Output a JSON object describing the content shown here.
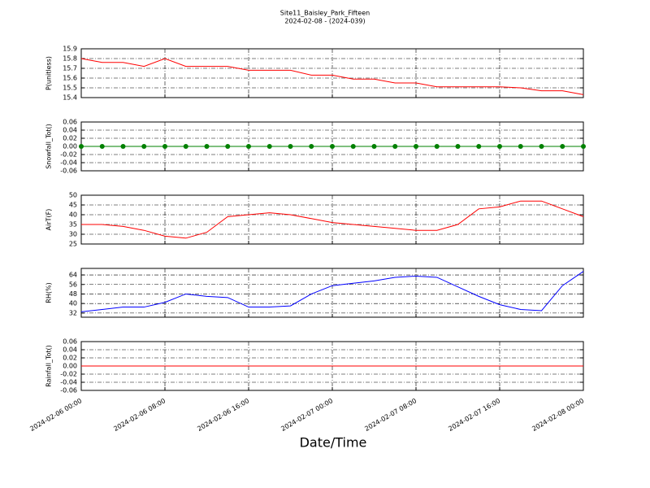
{
  "chart_data": [
    {
      "type": "line",
      "title": "Site11_Baisley_Park_Fifteen",
      "subtitle": "2024-02-08 - (2024-039)",
      "ylabel": "P(unitless)",
      "x": [
        "2024-02-06 00:00",
        "2024-02-06 02:00",
        "2024-02-06 04:00",
        "2024-02-06 06:00",
        "2024-02-06 08:00",
        "2024-02-06 10:00",
        "2024-02-06 12:00",
        "2024-02-06 14:00",
        "2024-02-06 16:00",
        "2024-02-06 18:00",
        "2024-02-06 20:00",
        "2024-02-06 22:00",
        "2024-02-07 00:00",
        "2024-02-07 02:00",
        "2024-02-07 04:00",
        "2024-02-07 06:00",
        "2024-02-07 08:00",
        "2024-02-07 10:00",
        "2024-02-07 12:00",
        "2024-02-07 14:00",
        "2024-02-07 16:00",
        "2024-02-07 18:00",
        "2024-02-07 20:00",
        "2024-02-07 22:00",
        "2024-02-08 00:00"
      ],
      "series": [
        {
          "color": "#ff0000",
          "values": [
            15.8,
            15.76,
            15.76,
            15.72,
            15.8,
            15.72,
            15.72,
            15.72,
            15.68,
            15.68,
            15.68,
            15.63,
            15.63,
            15.59,
            15.59,
            15.55,
            15.55,
            15.51,
            15.51,
            15.51,
            15.51,
            15.5,
            15.47,
            15.47,
            15.43
          ]
        }
      ],
      "ylim": [
        15.4,
        15.9
      ],
      "yticks": [
        15.4,
        15.5,
        15.6,
        15.7,
        15.8,
        15.9
      ],
      "xlim": [
        "2024-02-06 00:00",
        "2024-02-08 00:00"
      ],
      "xticks": [
        "2024-02-06 00:00",
        "2024-02-06 08:00",
        "2024-02-06 16:00",
        "2024-02-07 00:00",
        "2024-02-07 08:00",
        "2024-02-07 16:00",
        "2024-02-08 00:00"
      ],
      "grid": true
    },
    {
      "type": "line",
      "ylabel": "Snowfall_Tot()",
      "marker": "o",
      "x": [
        "2024-02-06 00:00",
        "2024-02-06 02:00",
        "2024-02-06 04:00",
        "2024-02-06 06:00",
        "2024-02-06 08:00",
        "2024-02-06 10:00",
        "2024-02-06 12:00",
        "2024-02-06 14:00",
        "2024-02-06 16:00",
        "2024-02-06 18:00",
        "2024-02-06 20:00",
        "2024-02-06 22:00",
        "2024-02-07 00:00",
        "2024-02-07 02:00",
        "2024-02-07 04:00",
        "2024-02-07 06:00",
        "2024-02-07 08:00",
        "2024-02-07 10:00",
        "2024-02-07 12:00",
        "2024-02-07 14:00",
        "2024-02-07 16:00",
        "2024-02-07 18:00",
        "2024-02-07 20:00",
        "2024-02-07 22:00",
        "2024-02-08 00:00"
      ],
      "series": [
        {
          "color": "#008000",
          "values": [
            0,
            0,
            0,
            0,
            0,
            0,
            0,
            0,
            0,
            0,
            0,
            0,
            0,
            0,
            0,
            0,
            0,
            0,
            0,
            0,
            0,
            0,
            0,
            0,
            0
          ]
        }
      ],
      "ylim": [
        -0.06,
        0.06
      ],
      "yticks": [
        -0.06,
        -0.04,
        -0.02,
        {
          "value": 0,
          "label": "0.00"
        },
        0.02,
        0.04,
        0.06
      ],
      "xlim": [
        "2024-02-06 00:00",
        "2024-02-08 00:00"
      ],
      "xticks": [
        "2024-02-06 00:00",
        "2024-02-06 08:00",
        "2024-02-06 16:00",
        "2024-02-07 00:00",
        "2024-02-07 08:00",
        "2024-02-07 16:00",
        "2024-02-08 00:00"
      ],
      "grid": true
    },
    {
      "type": "line",
      "ylabel": "AirT(F)",
      "x": [
        "2024-02-06 00:00",
        "2024-02-06 02:00",
        "2024-02-06 04:00",
        "2024-02-06 06:00",
        "2024-02-06 08:00",
        "2024-02-06 10:00",
        "2024-02-06 12:00",
        "2024-02-06 14:00",
        "2024-02-06 16:00",
        "2024-02-06 18:00",
        "2024-02-06 20:00",
        "2024-02-06 22:00",
        "2024-02-07 00:00",
        "2024-02-07 02:00",
        "2024-02-07 04:00",
        "2024-02-07 06:00",
        "2024-02-07 08:00",
        "2024-02-07 10:00",
        "2024-02-07 12:00",
        "2024-02-07 14:00",
        "2024-02-07 16:00",
        "2024-02-07 18:00",
        "2024-02-07 20:00",
        "2024-02-07 22:00",
        "2024-02-08 00:00"
      ],
      "series": [
        {
          "color": "#ff0000",
          "values": [
            35,
            35,
            34,
            32,
            29,
            28,
            31,
            39,
            40,
            41,
            40,
            38,
            36,
            35,
            34,
            33,
            32,
            32,
            35,
            43,
            44,
            47,
            47,
            43,
            39
          ]
        }
      ],
      "ylim": [
        25,
        50
      ],
      "yticks": [
        25,
        30,
        35,
        40,
        45,
        50
      ],
      "xlim": [
        "2024-02-06 00:00",
        "2024-02-08 00:00"
      ],
      "xticks": [
        "2024-02-06 00:00",
        "2024-02-06 08:00",
        "2024-02-06 16:00",
        "2024-02-07 00:00",
        "2024-02-07 08:00",
        "2024-02-07 16:00",
        "2024-02-08 00:00"
      ],
      "grid": true
    },
    {
      "type": "line",
      "ylabel": "RH(%)",
      "x": [
        "2024-02-06 00:00",
        "2024-02-06 02:00",
        "2024-02-06 04:00",
        "2024-02-06 06:00",
        "2024-02-06 08:00",
        "2024-02-06 10:00",
        "2024-02-06 12:00",
        "2024-02-06 14:00",
        "2024-02-06 16:00",
        "2024-02-06 18:00",
        "2024-02-06 20:00",
        "2024-02-06 22:00",
        "2024-02-07 00:00",
        "2024-02-07 02:00",
        "2024-02-07 04:00",
        "2024-02-07 06:00",
        "2024-02-07 08:00",
        "2024-02-07 10:00",
        "2024-02-07 12:00",
        "2024-02-07 14:00",
        "2024-02-07 16:00",
        "2024-02-07 18:00",
        "2024-02-07 20:00",
        "2024-02-07 22:00",
        "2024-02-08 00:00"
      ],
      "series": [
        {
          "color": "#0000ff",
          "values": [
            33,
            35,
            37,
            37,
            41,
            48,
            46,
            45,
            37,
            37,
            38,
            48,
            55,
            57,
            59,
            62,
            63,
            62,
            54,
            46,
            39,
            35,
            34,
            55,
            67
          ]
        }
      ],
      "ylim": [
        28.5,
        69.5
      ],
      "yticks": [
        32,
        40,
        48,
        56,
        64
      ],
      "xlim": [
        "2024-02-06 00:00",
        "2024-02-08 00:00"
      ],
      "xticks": [
        "2024-02-06 00:00",
        "2024-02-06 08:00",
        "2024-02-06 16:00",
        "2024-02-07 00:00",
        "2024-02-07 08:00",
        "2024-02-07 16:00",
        "2024-02-08 00:00"
      ],
      "grid": true
    },
    {
      "type": "line",
      "ylabel": "Rainfall_Tot()",
      "xlabel": "Date/Time",
      "x": [
        "2024-02-06 00:00",
        "2024-02-06 02:00",
        "2024-02-06 04:00",
        "2024-02-06 06:00",
        "2024-02-06 08:00",
        "2024-02-06 10:00",
        "2024-02-06 12:00",
        "2024-02-06 14:00",
        "2024-02-06 16:00",
        "2024-02-06 18:00",
        "2024-02-06 20:00",
        "2024-02-06 22:00",
        "2024-02-07 00:00",
        "2024-02-07 02:00",
        "2024-02-07 04:00",
        "2024-02-07 06:00",
        "2024-02-07 08:00",
        "2024-02-07 10:00",
        "2024-02-07 12:00",
        "2024-02-07 14:00",
        "2024-02-07 16:00",
        "2024-02-07 18:00",
        "2024-02-07 20:00",
        "2024-02-07 22:00",
        "2024-02-08 00:00"
      ],
      "series": [
        {
          "color": "#ff0000",
          "values": [
            0,
            0,
            0,
            0,
            0,
            0,
            0,
            0,
            0,
            0,
            0,
            0,
            0,
            0,
            0,
            0,
            0,
            0,
            0,
            0,
            0,
            0,
            0,
            0,
            0
          ]
        }
      ],
      "ylim": [
        -0.06,
        0.06
      ],
      "yticks": [
        -0.06,
        -0.04,
        -0.02,
        {
          "value": 0,
          "label": "0.00"
        },
        0.02,
        0.04,
        0.06
      ],
      "xlim": [
        "2024-02-06 00:00",
        "2024-02-08 00:00"
      ],
      "xticks": [
        "2024-02-06 00:00",
        "2024-02-06 08:00",
        "2024-02-06 16:00",
        "2024-02-07 00:00",
        "2024-02-07 08:00",
        "2024-02-07 16:00",
        "2024-02-08 00:00"
      ],
      "grid": true,
      "xticklabels": true
    }
  ]
}
